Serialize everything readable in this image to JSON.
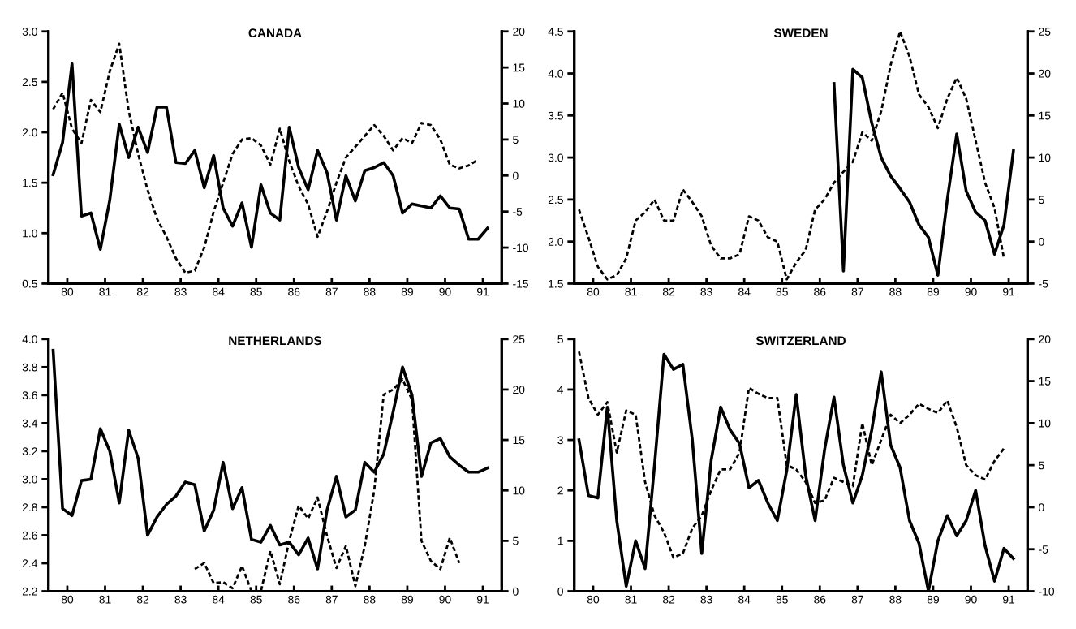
{
  "chart_data": [
    {
      "type": "line",
      "title": "CANADA",
      "grid": false,
      "marker": "none",
      "x": [
        79.625,
        79.875,
        80.125,
        80.375,
        80.625,
        80.875,
        81.125,
        81.375,
        81.625,
        81.875,
        82.125,
        82.375,
        82.625,
        82.875,
        83.125,
        83.375,
        83.625,
        83.875,
        84.125,
        84.375,
        84.625,
        84.875,
        85.125,
        85.375,
        85.625,
        85.875,
        86.125,
        86.375,
        86.625,
        86.875,
        87.125,
        87.375,
        87.625,
        87.875,
        88.125,
        88.375,
        88.625,
        88.875,
        89.125,
        89.375,
        89.625,
        89.875,
        90.125,
        90.375,
        90.625,
        90.875,
        91.125
      ],
      "xlim": [
        79.5,
        91.5
      ],
      "xticks": [
        80,
        81,
        82,
        83,
        84,
        85,
        86,
        87,
        88,
        89,
        90,
        91
      ],
      "ylim": [
        0.5,
        3.0
      ],
      "yticks": [
        {
          "value": 0.5,
          "label": "0.5"
        },
        {
          "value": 1.0,
          "label": "1.0"
        },
        {
          "value": 1.5,
          "label": "1.5"
        },
        {
          "value": 2.0,
          "label": "2.0"
        },
        {
          "value": 2.5,
          "label": "2.5"
        },
        {
          "value": 3.0,
          "label": "3.0"
        }
      ],
      "y2lim": [
        -15,
        20
      ],
      "y2ticks": [
        -15,
        -10,
        -5,
        0,
        5,
        10,
        15,
        20
      ],
      "series": [
        {
          "color": "#000000",
          "line_style": "solid",
          "values": [
            1.58,
            1.9,
            2.68,
            1.17,
            1.2,
            0.84,
            1.33,
            2.08,
            1.75,
            2.05,
            1.8,
            2.25,
            2.25,
            1.7,
            1.69,
            1.82,
            1.45,
            1.77,
            1.25,
            1.07,
            1.3,
            0.86,
            1.48,
            1.2,
            1.13,
            2.05,
            1.65,
            1.43,
            1.82,
            1.6,
            1.13,
            1.57,
            1.32,
            1.62,
            1.65,
            1.7,
            1.57,
            1.2,
            1.29,
            1.27,
            1.25,
            1.37,
            1.25,
            1.24,
            0.94,
            0.94,
            1.05
          ]
        },
        {
          "color": "#000000",
          "line_style": "dashed",
          "axis": "y2",
          "values": [
            9.2,
            11.5,
            6.5,
            4.5,
            10.5,
            8.8,
            14.5,
            18.3,
            9,
            3,
            -2,
            -6,
            -8.5,
            -11.5,
            -13.5,
            -13.2,
            -10,
            -5,
            -1,
            3,
            5,
            5.2,
            4.2,
            1.5,
            6.5,
            2,
            -1.5,
            -4,
            -8.5,
            -5,
            -1,
            2.5,
            4,
            5.5,
            7,
            5.5,
            3.5,
            5.2,
            4.5,
            7.3,
            7,
            5,
            1.5,
            1.0,
            1.4,
            2.2,
            null
          ]
        }
      ]
    },
    {
      "type": "line",
      "title": "SWEDEN",
      "grid": false,
      "marker": "none",
      "x": [
        79.625,
        79.875,
        80.125,
        80.375,
        80.625,
        80.875,
        81.125,
        81.375,
        81.625,
        81.875,
        82.125,
        82.375,
        82.625,
        82.875,
        83.125,
        83.375,
        83.625,
        83.875,
        84.125,
        84.375,
        84.625,
        84.875,
        85.125,
        85.375,
        85.625,
        85.875,
        86.125,
        86.375,
        86.625,
        86.875,
        87.125,
        87.375,
        87.625,
        87.875,
        88.125,
        88.375,
        88.625,
        88.875,
        89.125,
        89.375,
        89.625,
        89.875,
        90.125,
        90.375,
        90.625,
        90.875,
        91.125
      ],
      "xlim": [
        79.5,
        91.5
      ],
      "xticks": [
        80,
        81,
        82,
        83,
        84,
        85,
        86,
        87,
        88,
        89,
        90,
        91
      ],
      "ylim": [
        1.5,
        4.5
      ],
      "yticks": [
        {
          "value": 1.5,
          "label": "1.5"
        },
        {
          "value": 2.0,
          "label": "2.0"
        },
        {
          "value": 2.5,
          "label": "2.5"
        },
        {
          "value": 3.0,
          "label": "3.0"
        },
        {
          "value": 3.5,
          "label": "3.5"
        },
        {
          "value": 4.0,
          "label": "4.0"
        },
        {
          "value": 4.5,
          "label": "4.5"
        }
      ],
      "y2lim": [
        -5,
        25
      ],
      "y2ticks": [
        -5,
        0,
        5,
        10,
        15,
        20,
        25
      ],
      "series": [
        {
          "color": "#000000",
          "line_style": "solid",
          "values": [
            null,
            null,
            null,
            null,
            null,
            null,
            null,
            null,
            null,
            null,
            null,
            null,
            null,
            null,
            null,
            null,
            null,
            null,
            null,
            null,
            null,
            null,
            null,
            null,
            null,
            null,
            null,
            3.88,
            1.65,
            4.05,
            3.95,
            3.41,
            3.0,
            2.78,
            2.63,
            2.47,
            2.2,
            2.05,
            1.6,
            2.5,
            3.28,
            2.6,
            2.35,
            2.25,
            1.85,
            2.2,
            3.08
          ]
        },
        {
          "color": "#000000",
          "line_style": "dashed",
          "axis": "y2",
          "values": [
            3.8,
            0.5,
            -3,
            -4.5,
            -4,
            -2,
            2.5,
            3.5,
            5,
            2.5,
            2.5,
            6.2,
            4.7,
            3,
            -0.5,
            -2,
            -2,
            -1.5,
            3,
            2.5,
            0.5,
            0,
            -4.5,
            -2.5,
            -1,
            3.8,
            5,
            7,
            8.3,
            9.5,
            13,
            12,
            15.5,
            21,
            25,
            22,
            17.5,
            16,
            13.5,
            17,
            19.5,
            17,
            12,
            7,
            4,
            -2,
            null
          ]
        }
      ]
    },
    {
      "type": "line",
      "title": "NETHERLANDS",
      "grid": false,
      "marker": "none",
      "x": [
        79.625,
        79.875,
        80.125,
        80.375,
        80.625,
        80.875,
        81.125,
        81.375,
        81.625,
        81.875,
        82.125,
        82.375,
        82.625,
        82.875,
        83.125,
        83.375,
        83.625,
        83.875,
        84.125,
        84.375,
        84.625,
        84.875,
        85.125,
        85.375,
        85.625,
        85.875,
        86.125,
        86.375,
        86.625,
        86.875,
        87.125,
        87.375,
        87.625,
        87.875,
        88.125,
        88.375,
        88.625,
        88.875,
        89.125,
        89.375,
        89.625,
        89.875,
        90.125,
        90.375,
        90.625,
        90.875,
        91.125
      ],
      "xlim": [
        79.5,
        91.5
      ],
      "xticks": [
        80,
        81,
        82,
        83,
        84,
        85,
        86,
        87,
        88,
        89,
        90,
        91
      ],
      "ylim": [
        2.2,
        4.0
      ],
      "yticks": [
        {
          "value": 2.2,
          "label": "2.2"
        },
        {
          "value": 2.4,
          "label": "2.4"
        },
        {
          "value": 2.6,
          "label": "2.6"
        },
        {
          "value": 2.8,
          "label": "2.8"
        },
        {
          "value": 3.0,
          "label": "3.0"
        },
        {
          "value": 3.2,
          "label": "3.2"
        },
        {
          "value": 3.4,
          "label": "3.4"
        },
        {
          "value": 3.6,
          "label": "3.6"
        },
        {
          "value": 3.8,
          "label": "3.8"
        },
        {
          "value": 4.0,
          "label": "4.0"
        }
      ],
      "y2lim": [
        0,
        25
      ],
      "y2ticks": [
        0,
        5,
        10,
        15,
        20,
        25
      ],
      "series": [
        {
          "color": "#000000",
          "line_style": "solid",
          "values": [
            3.92,
            2.79,
            2.74,
            2.99,
            3.0,
            3.36,
            3.2,
            2.83,
            3.35,
            3.15,
            2.6,
            2.73,
            2.82,
            2.88,
            2.98,
            2.96,
            2.63,
            2.78,
            3.12,
            2.79,
            2.94,
            2.57,
            2.55,
            2.67,
            2.53,
            2.55,
            2.46,
            2.58,
            2.36,
            2.78,
            3.02,
            2.73,
            2.78,
            3.12,
            3.05,
            3.18,
            3.48,
            3.8,
            3.6,
            3.02,
            3.26,
            3.29,
            3.16,
            3.1,
            3.05,
            3.05,
            3.08
          ]
        },
        {
          "color": "#000000",
          "line_style": "dashed",
          "axis": "y2",
          "values": [
            null,
            null,
            null,
            null,
            null,
            null,
            null,
            null,
            null,
            null,
            null,
            null,
            null,
            null,
            null,
            2.2,
            2.8,
            0.8,
            0.9,
            0.3,
            2.5,
            0,
            0,
            4,
            0.7,
            5,
            8.5,
            7.2,
            9.3,
            5.5,
            2.3,
            4.5,
            0.5,
            4.5,
            10,
            19.5,
            20,
            21,
            19,
            5,
            3,
            2.2,
            5.3,
            2.8,
            null,
            null,
            null
          ]
        }
      ]
    },
    {
      "type": "line",
      "title": "SWITZERLAND",
      "grid": false,
      "marker": "none",
      "x": [
        79.625,
        79.875,
        80.125,
        80.375,
        80.625,
        80.875,
        81.125,
        81.375,
        81.625,
        81.875,
        82.125,
        82.375,
        82.625,
        82.875,
        83.125,
        83.375,
        83.625,
        83.875,
        84.125,
        84.375,
        84.625,
        84.875,
        85.125,
        85.375,
        85.625,
        85.875,
        86.125,
        86.375,
        86.625,
        86.875,
        87.125,
        87.375,
        87.625,
        87.875,
        88.125,
        88.375,
        88.625,
        88.875,
        89.125,
        89.375,
        89.625,
        89.875,
        90.125,
        90.375,
        90.625,
        90.875,
        91.125
      ],
      "xlim": [
        79.5,
        91.5
      ],
      "xticks": [
        80,
        81,
        82,
        83,
        84,
        85,
        86,
        87,
        88,
        89,
        90,
        91
      ],
      "ylim": [
        0,
        5
      ],
      "yticks": [
        0,
        1,
        2,
        3,
        4,
        5
      ],
      "y2lim": [
        -10,
        20
      ],
      "y2ticks": [
        -10,
        -5,
        0,
        5,
        10,
        15,
        20
      ],
      "series": [
        {
          "color": "#000000",
          "line_style": "solid",
          "values": [
            3.0,
            1.9,
            1.85,
            3.65,
            1.4,
            0.1,
            1.0,
            0.45,
            2.5,
            4.7,
            4.4,
            4.5,
            3.0,
            0.75,
            2.6,
            3.65,
            3.2,
            2.93,
            2.05,
            2.2,
            1.75,
            1.4,
            2.4,
            3.9,
            2.3,
            1.4,
            2.8,
            3.85,
            2.5,
            1.75,
            2.3,
            3.2,
            4.35,
            2.9,
            2.45,
            1.4,
            0.95,
            0.0,
            1.0,
            1.5,
            1.1,
            1.4,
            2.0,
            0.9,
            0.2,
            0.85,
            0.65
          ]
        },
        {
          "color": "#000000",
          "line_style": "dashed",
          "axis": "y2",
          "values": [
            18.5,
            13,
            11,
            12.5,
            6.5,
            11.5,
            11,
            3,
            -1,
            -3,
            -6,
            -5.5,
            -2.5,
            -1,
            2,
            4.5,
            4.5,
            6.5,
            14.2,
            13.5,
            13,
            13,
            5,
            4.5,
            3,
            0.5,
            0.8,
            3.5,
            3,
            2.5,
            10,
            5,
            8,
            11,
            10,
            11,
            12.3,
            11.7,
            11.2,
            12.7,
            9.5,
            5,
            3.8,
            3.3,
            5.5,
            7,
            null
          ]
        }
      ]
    }
  ]
}
